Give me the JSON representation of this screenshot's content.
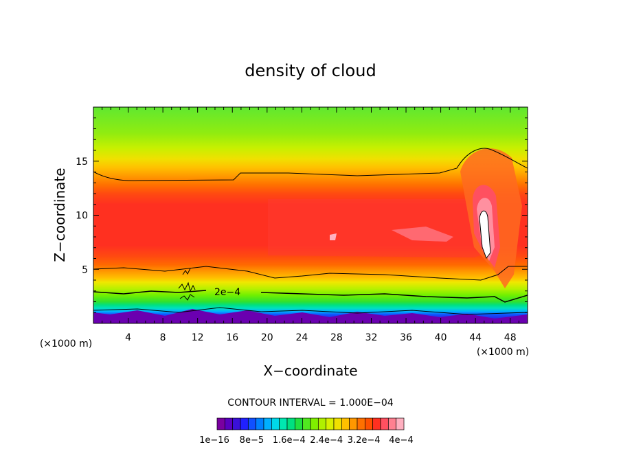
{
  "chart_data": {
    "type": "heatmap",
    "title": "density of cloud",
    "xlabel": "X−coordinate",
    "ylabel": "Z−coordinate",
    "x_unit": "(×1000 m)",
    "y_unit": "",
    "xlim": [
      0,
      50
    ],
    "ylim": [
      0,
      20
    ],
    "x_ticks": [
      4,
      8,
      12,
      16,
      20,
      24,
      28,
      32,
      36,
      40,
      44,
      48
    ],
    "y_ticks": [
      5,
      10,
      15
    ],
    "contour_interval_label": "CONTOUR INTERVAL = 1.000E−04",
    "contour_line_label": "2e−4",
    "colorbar_labels": [
      "1e−16",
      "8e−5",
      "1.6e−4",
      "2.4e−4",
      "3.2e−4",
      "4e−4"
    ],
    "colorbar_colors": [
      "#7a00a0",
      "#5a00c0",
      "#3a10d8",
      "#2020ff",
      "#1050ff",
      "#0080ff",
      "#00b0ff",
      "#00d8e8",
      "#00e8b0",
      "#00e080",
      "#20e040",
      "#50e820",
      "#80f000",
      "#b0f000",
      "#d8f000",
      "#f0e000",
      "#ffc000",
      "#ff9800",
      "#ff7000",
      "#ff5000",
      "#ff3020",
      "#ff5060",
      "#ff8090",
      "#ffb0c0"
    ]
  }
}
